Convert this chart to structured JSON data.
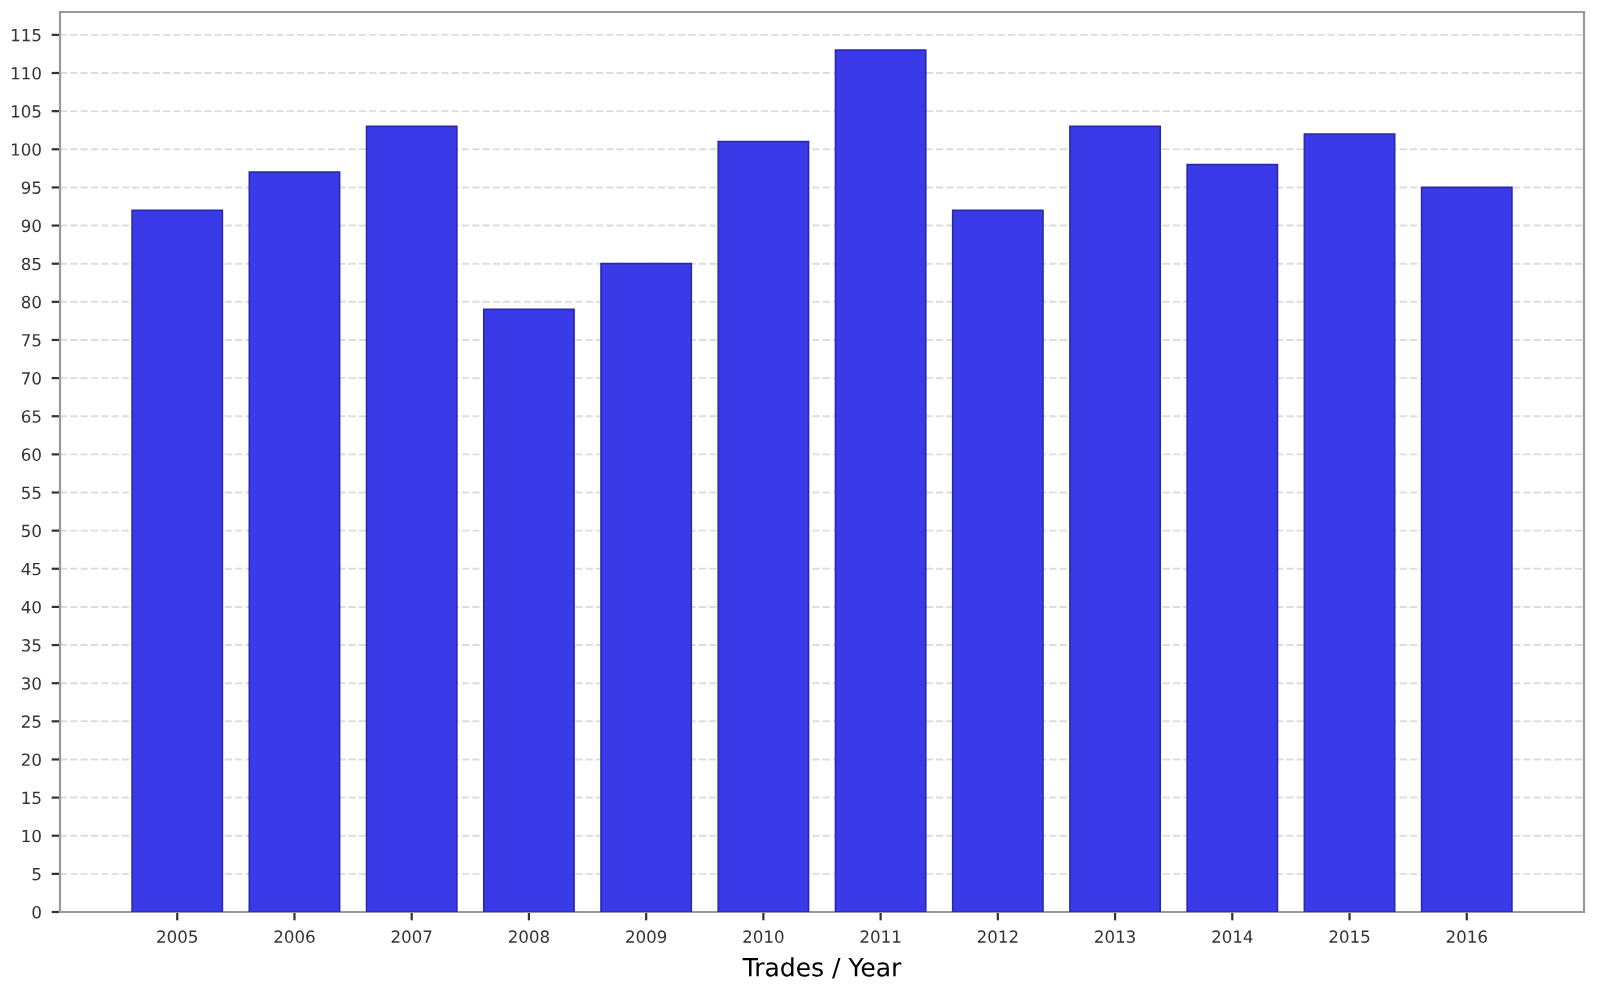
{
  "chart_data": {
    "type": "bar",
    "xlabel": "Trades / Year",
    "categories": [
      "2005",
      "2006",
      "2007",
      "2008",
      "2009",
      "2010",
      "2011",
      "2012",
      "2013",
      "2014",
      "2015",
      "2016"
    ],
    "values": [
      92,
      97,
      103,
      79,
      85,
      101,
      113,
      92,
      103,
      98,
      102,
      95
    ],
    "color": "#3a3ae8",
    "ylim": [
      0,
      118
    ],
    "yticks": [
      0,
      5,
      10,
      15,
      20,
      25,
      30,
      35,
      40,
      45,
      50,
      55,
      60,
      65,
      70,
      75,
      80,
      85,
      90,
      95,
      100,
      105,
      110,
      115
    ],
    "grid": "y",
    "legend": false
  }
}
